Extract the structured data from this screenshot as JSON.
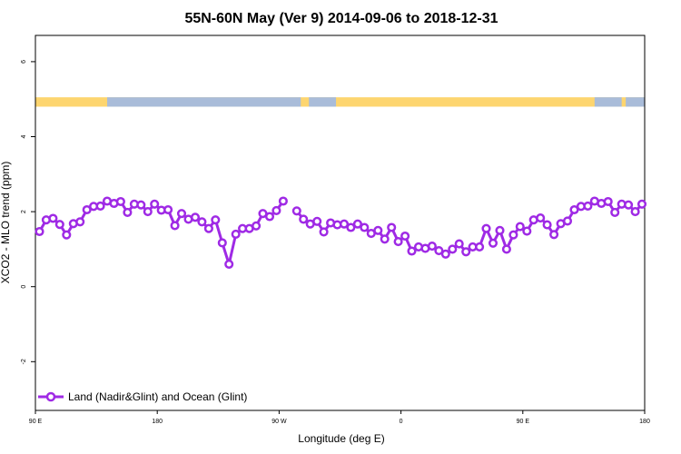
{
  "chart_data": {
    "type": "line",
    "title": "55N-60N May (Ver 9)   2014-09-06 to 2018-12-31",
    "xlabel": "Longitude (deg E)",
    "ylabel": "XCO2 - MLO trend (ppm)",
    "xlim": [
      90,
      540
    ],
    "ylim": [
      -3.3,
      6.7
    ],
    "x_ticks": [
      {
        "value": 90,
        "label": "90 E"
      },
      {
        "value": 180,
        "label": "180"
      },
      {
        "value": 270,
        "label": "90 W"
      },
      {
        "value": 360,
        "label": "0"
      },
      {
        "value": 450,
        "label": "90 E"
      },
      {
        "value": 540,
        "label": "180"
      }
    ],
    "y_ticks": [
      {
        "value": -2,
        "label": "-2"
      },
      {
        "value": 0,
        "label": "0"
      },
      {
        "value": 2,
        "label": "2"
      },
      {
        "value": 4,
        "label": "4"
      },
      {
        "value": 6,
        "label": "6"
      }
    ],
    "land_ocean_band": {
      "y_range": [
        4.8,
        5.05
      ],
      "land_color": "#fdd56f",
      "ocean_color": "#a9bcd9",
      "ocean_longitude_ranges": [
        [
          143,
          286
        ],
        [
          292,
          312
        ],
        [
          503,
          523
        ],
        [
          526,
          540
        ]
      ]
    },
    "series": [
      {
        "name": "Land (Nadir&Glint) and Ocean (Glint)",
        "color": "#9f2ae5",
        "segments": [
          [
            [
              93,
              1.47
            ],
            [
              98,
              1.78
            ],
            [
              103,
              1.82
            ],
            [
              108,
              1.66
            ],
            [
              113,
              1.38
            ],
            [
              118,
              1.68
            ],
            [
              123,
              1.73
            ],
            [
              128,
              2.05
            ],
            [
              133,
              2.14
            ],
            [
              138,
              2.15
            ],
            [
              143,
              2.28
            ],
            [
              148,
              2.22
            ],
            [
              153,
              2.27
            ],
            [
              158,
              1.98
            ],
            [
              163,
              2.2
            ],
            [
              168,
              2.18
            ],
            [
              173,
              2.0
            ],
            [
              178,
              2.2
            ],
            [
              183,
              2.04
            ],
            [
              188,
              2.05
            ],
            [
              193,
              1.63
            ],
            [
              198,
              1.95
            ],
            [
              203,
              1.8
            ],
            [
              208,
              1.85
            ],
            [
              213,
              1.73
            ],
            [
              218,
              1.55
            ],
            [
              223,
              1.78
            ],
            [
              228,
              1.17
            ],
            [
              233,
              0.6
            ],
            [
              238,
              1.4
            ],
            [
              243,
              1.55
            ],
            [
              248,
              1.55
            ],
            [
              253,
              1.62
            ],
            [
              258,
              1.95
            ],
            [
              263,
              1.87
            ],
            [
              268,
              2.03
            ],
            [
              273,
              2.28
            ]
          ],
          [
            [
              283,
              2.02
            ],
            [
              288,
              1.8
            ],
            [
              293,
              1.67
            ],
            [
              298,
              1.74
            ],
            [
              303,
              1.46
            ],
            [
              308,
              1.7
            ],
            [
              313,
              1.65
            ],
            [
              318,
              1.67
            ],
            [
              323,
              1.58
            ],
            [
              328,
              1.67
            ],
            [
              333,
              1.58
            ],
            [
              338,
              1.42
            ],
            [
              343,
              1.5
            ],
            [
              348,
              1.27
            ],
            [
              353,
              1.58
            ],
            [
              358,
              1.2
            ],
            [
              363,
              1.35
            ],
            [
              368,
              0.95
            ],
            [
              373,
              1.06
            ],
            [
              378,
              1.02
            ],
            [
              383,
              1.08
            ],
            [
              388,
              0.96
            ],
            [
              393,
              0.87
            ],
            [
              398,
              1.0
            ],
            [
              403,
              1.14
            ],
            [
              408,
              0.93
            ],
            [
              413,
              1.06
            ],
            [
              418,
              1.06
            ],
            [
              423,
              1.55
            ],
            [
              428,
              1.16
            ],
            [
              433,
              1.5
            ],
            [
              438,
              1.0
            ],
            [
              443,
              1.38
            ],
            [
              448,
              1.6
            ],
            [
              453,
              1.48
            ],
            [
              458,
              1.78
            ],
            [
              463,
              1.83
            ],
            [
              468,
              1.65
            ],
            [
              473,
              1.39
            ],
            [
              478,
              1.68
            ],
            [
              483,
              1.75
            ],
            [
              488,
              2.05
            ],
            [
              493,
              2.14
            ],
            [
              498,
              2.15
            ],
            [
              503,
              2.28
            ],
            [
              508,
              2.22
            ],
            [
              513,
              2.27
            ],
            [
              518,
              1.98
            ],
            [
              523,
              2.2
            ],
            [
              528,
              2.18
            ],
            [
              533,
              2.0
            ],
            [
              538,
              2.2
            ]
          ]
        ]
      }
    ],
    "legend": {
      "position": "bottom-left",
      "entries": [
        "Land (Nadir&Glint) and Ocean (Glint)"
      ]
    },
    "grid": false
  }
}
